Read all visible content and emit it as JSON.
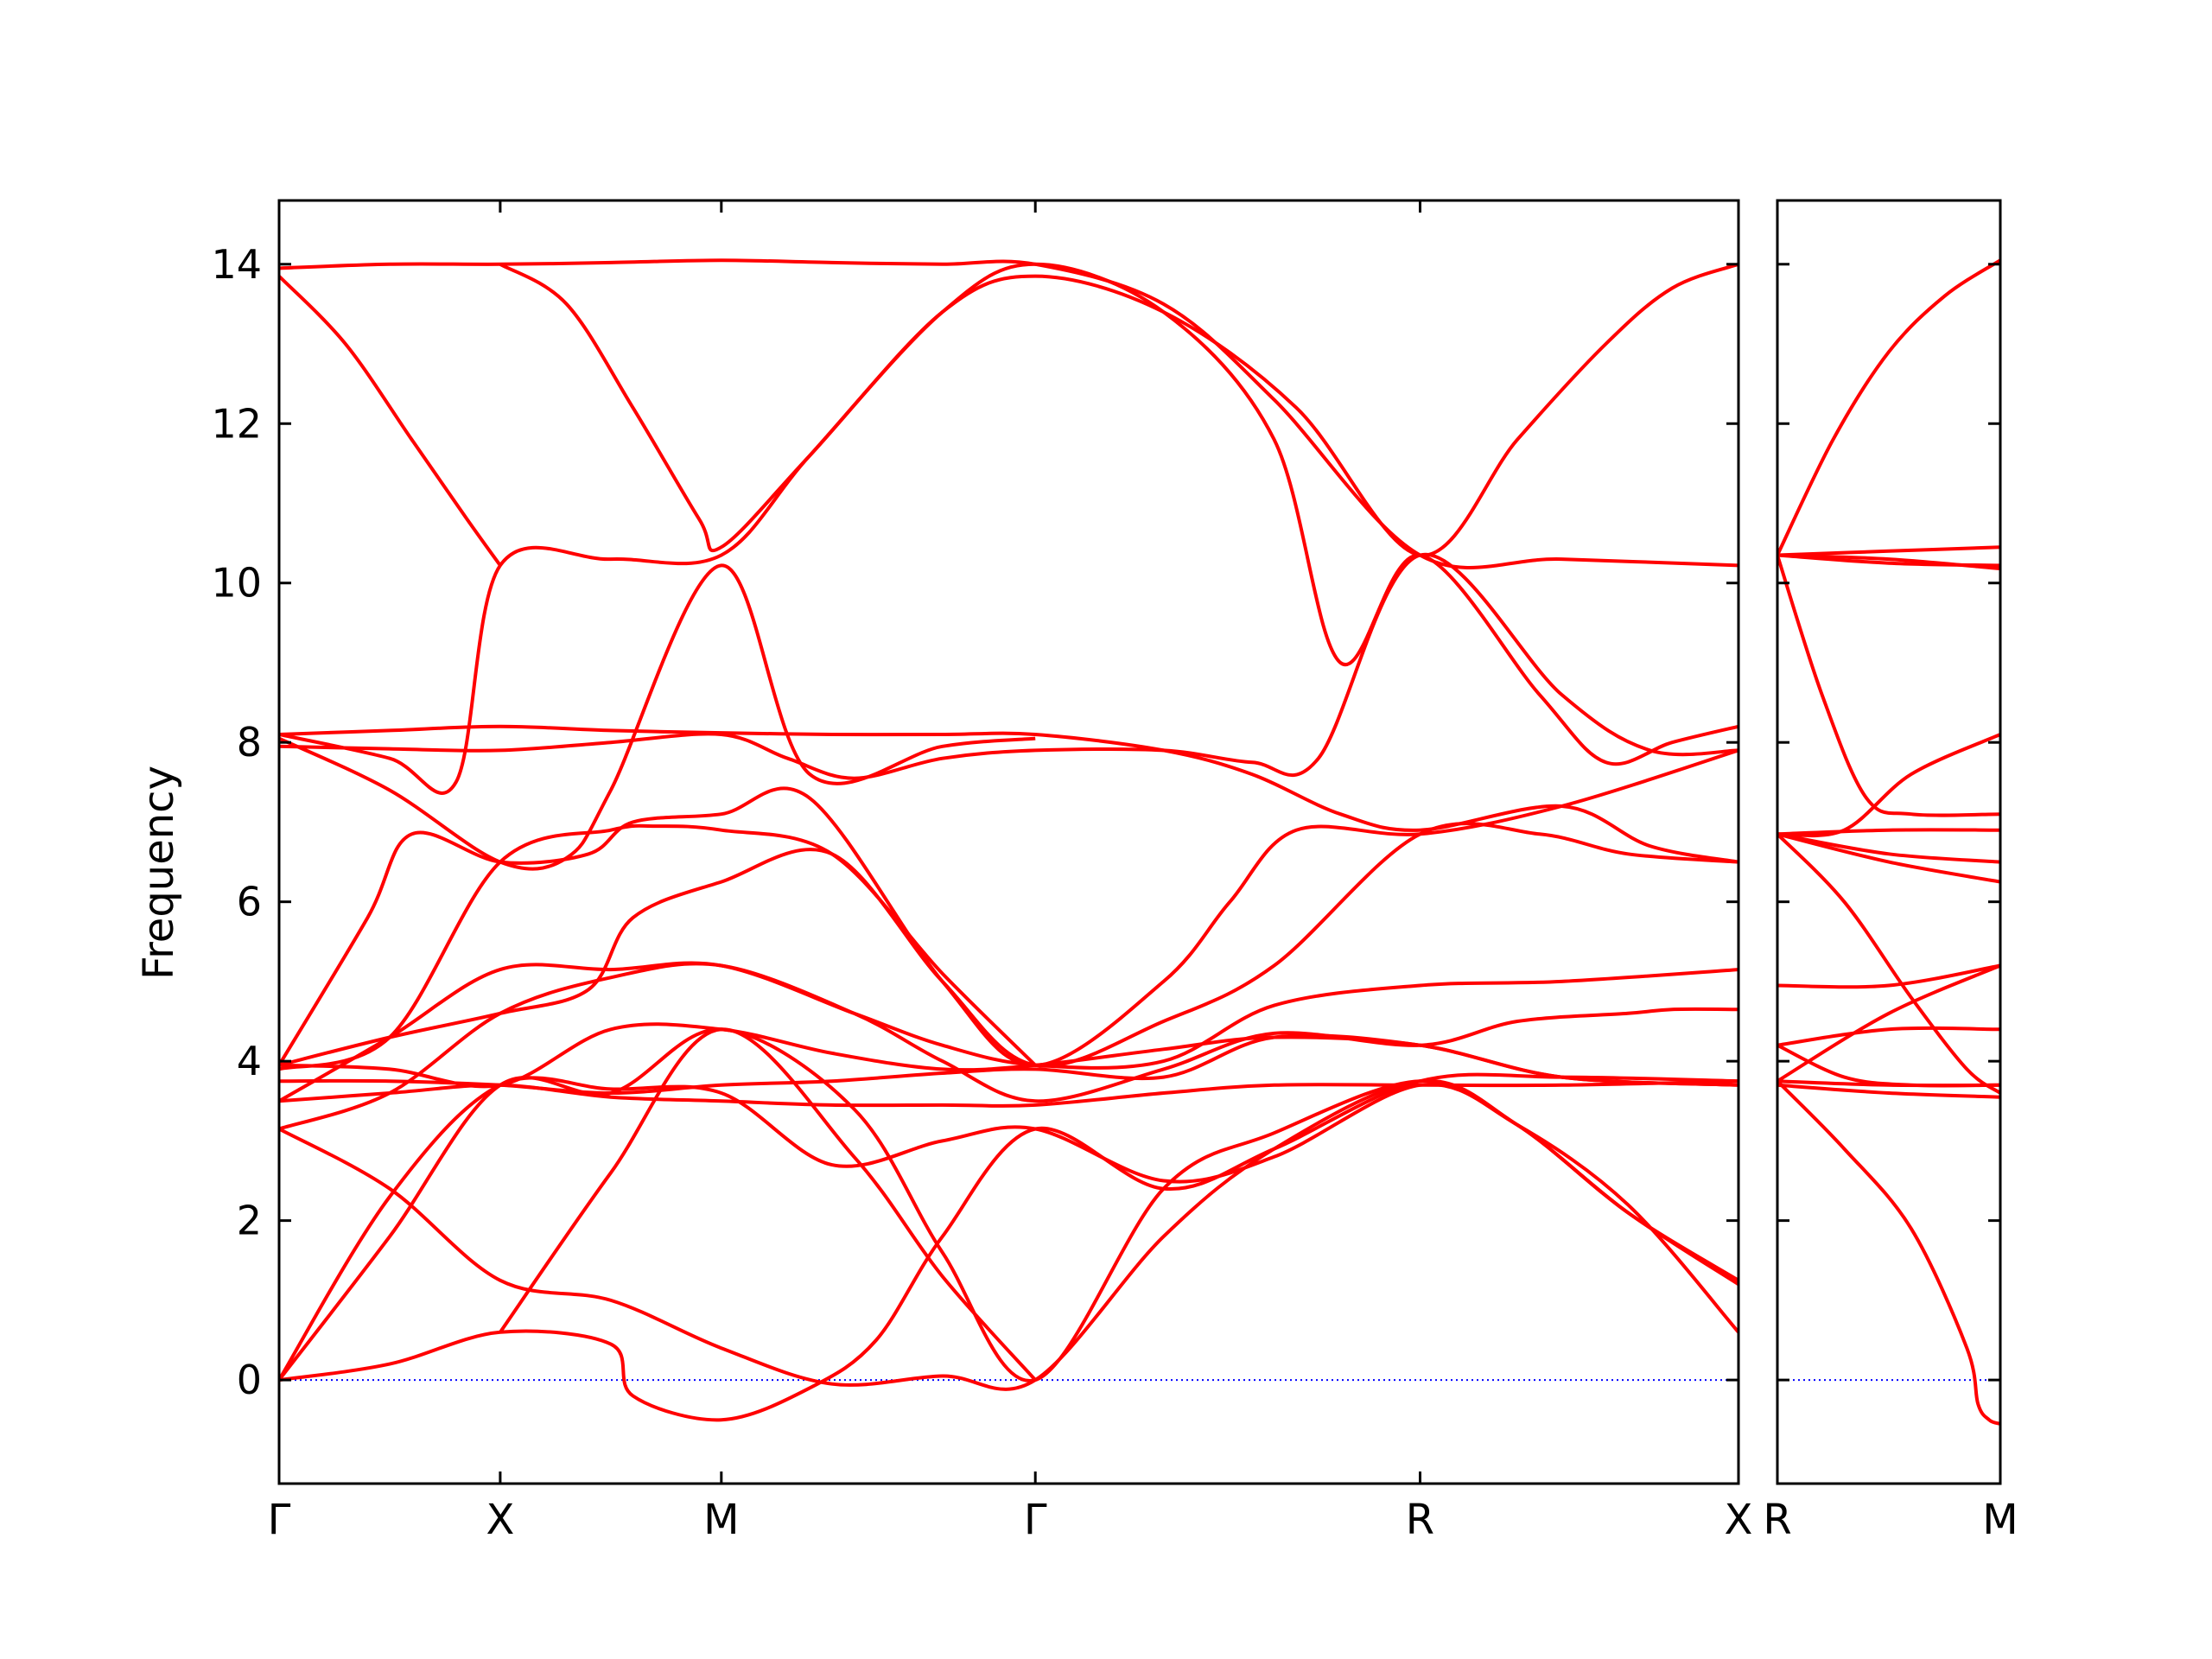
{
  "colors": {
    "bands": "#ff0000",
    "zero_line": "#0000ff",
    "axes": "#000000"
  },
  "chart_data": {
    "type": "line",
    "ylabel": "Frequency",
    "xlabel": "",
    "ylim": [
      -1.3,
      14.8
    ],
    "y_ticks": [
      0,
      2,
      4,
      6,
      8,
      10,
      12,
      14
    ],
    "grid": false,
    "legend": "none",
    "zero_line": {
      "y": 0,
      "style": "dotted"
    },
    "panels": [
      {
        "xlim": [
          0,
          6.6
        ],
        "high_symmetry_points": [
          {
            "label": "Γ",
            "x": 0
          },
          {
            "label": "X",
            "x": 1
          },
          {
            "label": "M",
            "x": 2
          },
          {
            "label": "Γ",
            "x": 3.42
          },
          {
            "label": "R",
            "x": 5.16
          },
          {
            "label": "X",
            "x": 6.6
          }
        ],
        "series": [
          {
            "x": [
              0,
              0.5,
              1,
              1.5,
              2,
              2.5,
              3,
              3.42,
              4,
              4.5,
              5.16,
              5.8,
              6.6
            ],
            "y": [
              13.95,
              14.0,
              14.0,
              14.02,
              14.05,
              14.02,
              14.0,
              14.0,
              13.5,
              12.3,
              10.35,
              10.3,
              10.22
            ]
          },
          {
            "x": [
              0,
              0.3,
              0.6,
              0.85,
              1
            ],
            "y": [
              13.85,
              13.0,
              11.8,
              10.8,
              10.22
            ]
          },
          {
            "x": [
              1,
              1.3,
              1.6,
              1.9,
              2,
              2.4,
              3,
              3.42,
              4,
              4.6,
              5.16,
              5.6,
              6,
              6.3,
              6.6
            ],
            "y": [
              14.0,
              13.5,
              12.2,
              10.8,
              10.45,
              11.6,
              13.4,
              13.85,
              13.4,
              12.2,
              10.35,
              11.8,
              13.0,
              13.7,
              14.0
            ]
          },
          {
            "x": [
              0,
              0.5,
              0.8,
              1,
              1.5,
              2,
              2.4,
              3,
              3.42,
              4,
              4.5,
              4.8,
              5.16,
              5.7,
              6,
              6.3,
              6.6
            ],
            "y": [
              8.1,
              7.8,
              7.5,
              10.22,
              10.3,
              10.35,
              11.6,
              13.4,
              14.0,
              13.4,
              11.8,
              9.0,
              10.35,
              8.6,
              7.75,
              8.0,
              8.2
            ]
          },
          {
            "x": [
              0,
              0.5,
              1,
              1.5,
              2,
              2.5,
              3,
              3.42,
              4,
              4.4,
              4.8,
              5.16,
              5.8,
              6.2,
              6.6
            ],
            "y": [
              8.1,
              8.15,
              8.2,
              8.15,
              8.12,
              8.1,
              8.1,
              8.1,
              7.9,
              7.6,
              7.1,
              6.9,
              7.2,
              6.7,
              6.5
            ]
          },
          {
            "x": [
              0,
              0.5,
              1,
              1.5,
              2,
              2.3,
              2.6,
              3,
              3.42,
              4,
              4.4,
              4.7,
              5.16,
              5.8,
              6.2,
              6.6
            ],
            "y": [
              7.95,
              7.92,
              7.9,
              8.0,
              8.1,
              7.8,
              7.55,
              7.8,
              7.9,
              7.9,
              7.75,
              7.8,
              10.35,
              8.6,
              7.9,
              7.9
            ]
          },
          {
            "x": [
              0,
              0.5,
              1,
              1.3,
              1.5,
              2,
              2.4,
              3,
              3.42
            ],
            "y": [
              8.05,
              7.4,
              6.5,
              6.55,
              7.4,
              10.22,
              7.6,
              7.95,
              8.05
            ]
          },
          {
            "x": [
              0,
              0.4,
              0.6,
              1,
              1.4,
              1.6,
              2,
              2.4,
              3,
              3.42,
              4,
              4.3,
              4.6,
              5.16,
              5.8,
              6.6
            ],
            "y": [
              3.95,
              5.8,
              6.85,
              6.5,
              6.6,
              7.0,
              7.1,
              7.3,
              5.0,
              3.95,
              5.0,
              6.0,
              6.9,
              6.85,
              7.2,
              7.9
            ]
          },
          {
            "x": [
              0,
              0.5,
              1,
              1.4,
              1.6,
              2,
              2.5,
              3,
              3.42,
              4,
              4.5,
              5.16,
              5.7,
              6.1,
              6.6
            ],
            "y": [
              3.95,
              4.3,
              4.6,
              4.9,
              5.8,
              6.25,
              6.6,
              5.0,
              3.95,
              4.5,
              5.2,
              6.85,
              6.85,
              6.6,
              6.5
            ]
          },
          {
            "x": [
              0,
              0.5,
              1,
              1.5,
              1.7,
              2,
              2.5,
              3,
              3.42
            ],
            "y": [
              3.9,
              4.3,
              6.5,
              6.9,
              6.95,
              6.9,
              6.6,
              5.1,
              3.95
            ]
          },
          {
            "x": [
              0,
              0.5,
              1,
              1.5,
              2,
              2.6,
              3,
              3.42,
              4,
              4.5,
              5.16,
              5.8,
              6.6
            ],
            "y": [
              3.5,
              4.3,
              5.15,
              5.15,
              5.2,
              4.6,
              4.2,
              3.95,
              4.0,
              4.7,
              4.95,
              5.0,
              5.15
            ]
          },
          {
            "x": [
              0,
              0.5,
              1,
              1.5,
              2,
              2.6,
              3,
              3.42,
              4,
              4.5,
              5.16,
              5.6,
              6.1,
              6.3,
              6.6
            ],
            "y": [
              3.15,
              3.6,
              4.6,
              5.05,
              5.2,
              4.6,
              4.0,
              3.5,
              3.9,
              4.35,
              4.2,
              4.5,
              4.6,
              4.65,
              4.65
            ]
          },
          {
            "x": [
              0,
              0.5,
              1,
              1.5,
              2,
              2.5,
              3,
              3.42,
              4,
              4.5,
              5.16,
              5.8,
              6.6
            ],
            "y": [
              3.95,
              3.9,
              3.7,
              4.4,
              4.4,
              4.1,
              3.9,
              3.95,
              4.15,
              4.3,
              4.2,
              3.8,
              3.7
            ]
          },
          {
            "x": [
              0,
              0.5,
              1,
              1.5,
              2,
              2.5,
              3,
              3.42,
              4,
              4.5,
              5.16,
              5.8,
              6.6
            ],
            "y": [
              3.75,
              3.75,
              3.7,
              3.6,
              3.7,
              3.75,
              3.85,
              3.9,
              3.8,
              4.3,
              4.2,
              3.8,
              3.7
            ]
          },
          {
            "x": [
              0,
              0.5,
              1,
              1.5,
              2,
              2.5,
              3,
              3.42,
              4,
              4.5,
              5.16,
              5.8,
              6.6
            ],
            "y": [
              3.5,
              3.6,
              3.7,
              3.55,
              3.5,
              3.45,
              3.45,
              3.45,
              3.6,
              3.7,
              3.7,
              3.7,
              3.75
            ]
          },
          {
            "x": [
              0,
              0.5,
              1,
              1.5,
              2,
              2.5,
              3,
              3.42,
              4,
              4.5,
              5.16,
              5.6,
              6.1,
              6.6
            ],
            "y": [
              3.15,
              2.4,
              1.25,
              1.0,
              0.4,
              -0.05,
              0.05,
              0.0,
              1.8,
              2.9,
              3.75,
              3.2,
              2.1,
              1.2
            ]
          },
          {
            "x": [
              0,
              0.5,
              1,
              1.5,
              2,
              2.5,
              3,
              3.42,
              4,
              4.5,
              5.16,
              5.6,
              6.1,
              6.6
            ],
            "y": [
              0.0,
              2.3,
              3.7,
              3.65,
              3.6,
              2.7,
              3.0,
              3.15,
              2.5,
              2.8,
              3.7,
              3.2,
              2.2,
              0.6
            ]
          },
          {
            "x": [
              0,
              0.5,
              1,
              1.5,
              1.6,
              2,
              2.4,
              2.7,
              3,
              3.42,
              4,
              4.5,
              5.16,
              5.8,
              6.6
            ],
            "y": [
              0.0,
              0.2,
              0.6,
              0.45,
              -0.2,
              -0.5,
              -0.1,
              0.5,
              1.8,
              3.15,
              2.4,
              2.9,
              3.75,
              3.8,
              3.75
            ]
          },
          {
            "x": [
              0,
              0.5,
              1,
              1.5,
              2,
              2.6,
              3,
              3.42,
              4,
              4.5,
              5.16,
              5.6,
              6.1,
              6.6
            ],
            "y": [
              0.0,
              1.8,
              3.7,
              3.6,
              4.4,
              3.4,
              1.6,
              0.0,
              2.4,
              3.1,
              3.75,
              3.2,
              2.1,
              1.25
            ]
          },
          {
            "x": [
              1,
              1.5,
              2,
              2.6,
              3,
              3.42
            ],
            "y": [
              0.6,
              2.6,
              4.4,
              2.8,
              1.3,
              0.0
            ]
          }
        ]
      },
      {
        "xlim": [
          0,
          1
        ],
        "high_symmetry_points": [
          {
            "label": "R",
            "x": 0
          },
          {
            "label": "M",
            "x": 1
          }
        ],
        "series": [
          {
            "x": [
              0,
              0.25,
              0.5,
              0.75,
              1
            ],
            "y": [
              10.35,
              11.8,
              12.9,
              13.6,
              14.05
            ]
          },
          {
            "x": [
              0,
              0.5,
              1
            ],
            "y": [
              10.35,
              10.4,
              10.45
            ]
          },
          {
            "x": [
              0,
              0.5,
              1
            ],
            "y": [
              10.35,
              10.25,
              10.22
            ]
          },
          {
            "x": [
              0,
              0.5,
              1
            ],
            "y": [
              10.35,
              10.3,
              10.18
            ]
          },
          {
            "x": [
              0,
              0.2,
              0.4,
              0.6,
              1
            ],
            "y": [
              10.35,
              8.6,
              7.3,
              7.1,
              7.1
            ]
          },
          {
            "x": [
              0,
              0.3,
              0.6,
              1
            ],
            "y": [
              6.85,
              6.9,
              7.6,
              8.1
            ]
          },
          {
            "x": [
              0,
              0.5,
              1
            ],
            "y": [
              6.85,
              6.9,
              6.9
            ]
          },
          {
            "x": [
              0,
              0.5,
              1
            ],
            "y": [
              6.85,
              6.6,
              6.5
            ]
          },
          {
            "x": [
              0,
              0.5,
              1
            ],
            "y": [
              6.85,
              6.5,
              6.25
            ]
          },
          {
            "x": [
              0,
              0.3,
              0.6,
              0.85,
              1
            ],
            "y": [
              6.85,
              6.0,
              4.8,
              3.9,
              3.6
            ]
          },
          {
            "x": [
              0,
              0.5,
              1
            ],
            "y": [
              4.95,
              4.95,
              5.2
            ]
          },
          {
            "x": [
              0,
              0.5,
              1
            ],
            "y": [
              3.75,
              4.6,
              5.2
            ]
          },
          {
            "x": [
              0,
              0.5,
              1
            ],
            "y": [
              4.2,
              4.4,
              4.4
            ]
          },
          {
            "x": [
              0,
              0.3,
              0.6,
              1
            ],
            "y": [
              4.2,
              3.8,
              3.7,
              3.7
            ]
          },
          {
            "x": [
              0,
              0.5,
              1
            ],
            "y": [
              3.75,
              3.7,
              3.7
            ]
          },
          {
            "x": [
              0,
              0.5,
              1
            ],
            "y": [
              3.7,
              3.6,
              3.55
            ]
          },
          {
            "x": [
              0,
              0.3,
              0.6,
              0.85,
              0.9,
              0.95,
              1
            ],
            "y": [
              3.75,
              2.9,
              1.9,
              0.4,
              -0.3,
              -0.5,
              -0.55
            ]
          }
        ]
      }
    ]
  }
}
